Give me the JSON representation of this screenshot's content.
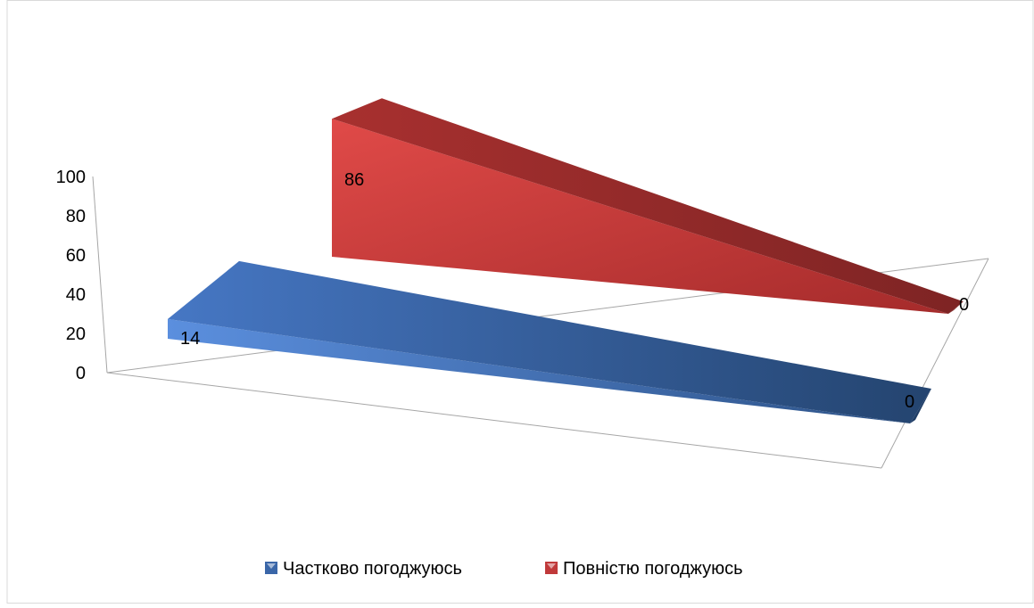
{
  "chart_data": {
    "type": "area",
    "categories": [
      "",
      ""
    ],
    "series": [
      {
        "name": "Частково погоджуюсь",
        "values": [
          14,
          0
        ],
        "data_labels": [
          "14",
          "0"
        ],
        "color": "#3a66a8"
      },
      {
        "name": "Повністю погоджуюсь",
        "values": [
          86,
          0
        ],
        "data_labels": [
          "86",
          "0"
        ],
        "color": "#c0393a"
      }
    ],
    "y_ticks": [
      "0",
      "20",
      "40",
      "60",
      "80",
      "100"
    ],
    "ylim": [
      0,
      100
    ],
    "style": "3d",
    "legend_position": "bottom"
  }
}
